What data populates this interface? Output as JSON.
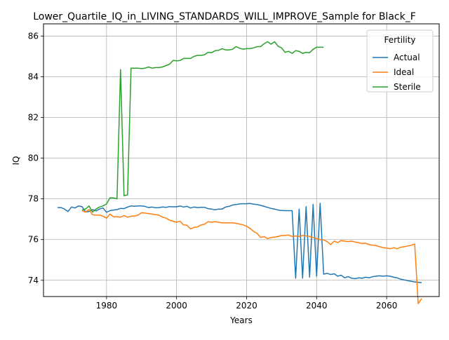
{
  "chart_data": {
    "type": "line",
    "title": "Lower_Quartile_IQ_in_LIVING_STANDARDS_WILL_IMPROVE_Sample for Black_F",
    "xlabel": "Years",
    "ylabel": "IQ",
    "xlim": [
      1962,
      2075
    ],
    "ylim": [
      73.2,
      86.6
    ],
    "x_ticks": [
      1980,
      2000,
      2020,
      2040,
      2060
    ],
    "y_ticks": [
      74,
      76,
      78,
      80,
      82,
      84,
      86
    ],
    "grid": true,
    "legend": {
      "title": "Fertility",
      "placement": "top-right"
    },
    "series": [
      {
        "name": "Actual",
        "color": "#1f77b4",
        "x": [
          1966,
          1967,
          1968,
          1969,
          1970,
          1971,
          1972,
          1973,
          1974,
          1975,
          1976,
          1977,
          1978,
          1979,
          1980,
          1981,
          1982,
          1983,
          1984,
          1985,
          1986,
          1987,
          1988,
          1989,
          1990,
          1991,
          1992,
          1993,
          1994,
          1995,
          1996,
          1997,
          1998,
          1999,
          2000,
          2001,
          2002,
          2003,
          2004,
          2005,
          2006,
          2007,
          2008,
          2009,
          2010,
          2011,
          2012,
          2013,
          2014,
          2015,
          2016,
          2017,
          2018,
          2019,
          2020,
          2021,
          2022,
          2023,
          2024,
          2025,
          2026,
          2027,
          2028,
          2029,
          2030,
          2031,
          2032,
          2033,
          2034,
          2035,
          2036,
          2037,
          2038,
          2039,
          2040,
          2041,
          2042,
          2043,
          2044,
          2045,
          2046,
          2047,
          2048,
          2049,
          2050,
          2051,
          2052,
          2053,
          2054,
          2055,
          2056,
          2057,
          2058,
          2059,
          2060,
          2061,
          2062,
          2063,
          2064,
          2065,
          2066,
          2067,
          2068,
          2069,
          2070
        ],
        "y": [
          77.57,
          77.57,
          77.5,
          77.38,
          77.6,
          77.55,
          77.65,
          77.62,
          77.36,
          77.38,
          77.47,
          77.41,
          77.5,
          77.55,
          77.34,
          77.42,
          77.45,
          77.47,
          77.53,
          77.52,
          77.6,
          77.65,
          77.64,
          77.65,
          77.65,
          77.63,
          77.57,
          77.6,
          77.56,
          77.57,
          77.6,
          77.58,
          77.62,
          77.61,
          77.61,
          77.65,
          77.6,
          77.63,
          77.55,
          77.6,
          77.57,
          77.58,
          77.58,
          77.52,
          77.5,
          77.46,
          77.5,
          77.5,
          77.6,
          77.63,
          77.7,
          77.72,
          77.75,
          77.76,
          77.76,
          77.77,
          77.74,
          77.72,
          77.68,
          77.63,
          77.58,
          77.53,
          77.5,
          77.45,
          77.43,
          77.42,
          77.42,
          77.42,
          74.1,
          77.5,
          74.1,
          77.62,
          74.15,
          77.72,
          74.2,
          77.78,
          74.3,
          74.34,
          74.28,
          74.32,
          74.2,
          74.25,
          74.12,
          74.18,
          74.1,
          74.08,
          74.12,
          74.1,
          74.15,
          74.12,
          74.18,
          74.2,
          74.22,
          74.2,
          74.22,
          74.2,
          74.15,
          74.12,
          74.05,
          74.02,
          73.98,
          73.95,
          73.92,
          73.9,
          73.88
        ]
      },
      {
        "name": "Ideal",
        "color": "#ff7f0e",
        "x": [
          1973,
          1974,
          1975,
          1976,
          1977,
          1978,
          1979,
          1980,
          1981,
          1982,
          1983,
          1984,
          1985,
          1986,
          1987,
          1988,
          1989,
          1990,
          1991,
          1992,
          1993,
          1994,
          1995,
          1996,
          1997,
          1998,
          1999,
          2000,
          2001,
          2002,
          2003,
          2004,
          2005,
          2006,
          2007,
          2008,
          2009,
          2010,
          2011,
          2012,
          2013,
          2014,
          2015,
          2016,
          2017,
          2018,
          2019,
          2020,
          2021,
          2022,
          2023,
          2024,
          2025,
          2026,
          2027,
          2028,
          2029,
          2030,
          2031,
          2032,
          2033,
          2034,
          2035,
          2036,
          2037,
          2038,
          2039,
          2040,
          2041,
          2042,
          2043,
          2044,
          2045,
          2046,
          2047,
          2048,
          2049,
          2050,
          2051,
          2052,
          2053,
          2054,
          2055,
          2056,
          2057,
          2058,
          2059,
          2060,
          2061,
          2062,
          2063,
          2064,
          2065,
          2066,
          2067,
          2068,
          2069,
          2070
        ],
        "y": [
          77.42,
          77.35,
          77.48,
          77.22,
          77.2,
          77.2,
          77.15,
          77.05,
          77.25,
          77.12,
          77.12,
          77.1,
          77.18,
          77.1,
          77.15,
          77.15,
          77.2,
          77.32,
          77.3,
          77.28,
          77.25,
          77.22,
          77.2,
          77.1,
          77.05,
          76.95,
          76.9,
          76.85,
          76.9,
          76.72,
          76.7,
          76.52,
          76.6,
          76.62,
          76.72,
          76.75,
          76.88,
          76.85,
          76.88,
          76.85,
          76.82,
          76.82,
          76.82,
          76.82,
          76.8,
          76.76,
          76.72,
          76.65,
          76.55,
          76.4,
          76.3,
          76.1,
          76.15,
          76.05,
          76.1,
          76.12,
          76.15,
          76.2,
          76.2,
          76.22,
          76.15,
          76.18,
          76.15,
          76.2,
          76.18,
          76.15,
          76.1,
          76.05,
          76.0,
          75.98,
          75.9,
          75.75,
          75.92,
          75.85,
          75.95,
          75.92,
          75.9,
          75.92,
          75.88,
          75.85,
          75.8,
          75.82,
          75.75,
          75.72,
          75.7,
          75.65,
          75.6,
          75.58,
          75.55,
          75.6,
          75.55,
          75.62,
          75.65,
          75.68,
          75.72,
          75.78,
          72.85,
          73.1
        ]
      },
      {
        "name": "Sterile",
        "color": "#2ca02c",
        "x": [
          1973,
          1974,
          1975,
          1976,
          1977,
          1978,
          1979,
          1980,
          1981,
          1982,
          1983,
          1984,
          1985,
          1986,
          1987,
          1988,
          1989,
          1990,
          1991,
          1992,
          1993,
          1994,
          1995,
          1996,
          1997,
          1998,
          1999,
          2000,
          2001,
          2002,
          2003,
          2004,
          2005,
          2006,
          2007,
          2008,
          2009,
          2010,
          2011,
          2012,
          2013,
          2014,
          2015,
          2016,
          2017,
          2018,
          2019,
          2020,
          2021,
          2022,
          2023,
          2024,
          2025,
          2026,
          2027,
          2028,
          2029,
          2030,
          2031,
          2032,
          2033,
          2034,
          2035,
          2036,
          2037,
          2038,
          2039,
          2040,
          2041,
          2042
        ],
        "y": [
          77.45,
          77.5,
          77.65,
          77.35,
          77.5,
          77.6,
          77.65,
          77.75,
          78.05,
          78.05,
          78.0,
          84.35,
          78.15,
          78.2,
          84.42,
          84.42,
          84.42,
          84.4,
          84.42,
          84.48,
          84.42,
          84.45,
          84.45,
          84.48,
          84.55,
          84.62,
          84.8,
          84.78,
          84.8,
          84.9,
          84.9,
          84.9,
          85.0,
          85.05,
          85.05,
          85.08,
          85.2,
          85.18,
          85.28,
          85.3,
          85.38,
          85.32,
          85.32,
          85.35,
          85.48,
          85.4,
          85.35,
          85.38,
          85.38,
          85.42,
          85.48,
          85.48,
          85.62,
          85.72,
          85.6,
          85.72,
          85.5,
          85.42,
          85.2,
          85.25,
          85.15,
          85.28,
          85.25,
          85.15,
          85.2,
          85.18,
          85.35,
          85.45,
          85.45,
          85.45
        ]
      }
    ]
  }
}
